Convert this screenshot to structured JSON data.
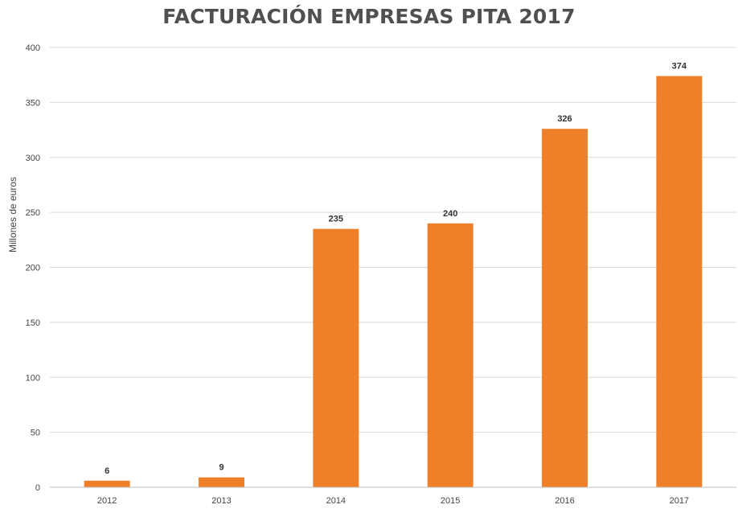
{
  "chart_data": {
    "type": "bar",
    "title": "FACTURACIÓN EMPRESAS PITA 2017",
    "ylabel": "Millones de euros",
    "xlabel": "",
    "categories": [
      "2012",
      "2013",
      "2014",
      "2015",
      "2016",
      "2017"
    ],
    "values": [
      6,
      9,
      235,
      240,
      326,
      374
    ],
    "ylim": [
      0,
      400
    ],
    "yticks": [
      0,
      50,
      100,
      150,
      200,
      250,
      300,
      350,
      400
    ],
    "grid": true,
    "show_data_labels": true,
    "bar_color": "#F07F2A",
    "grid_color": "#D9D9D9"
  }
}
